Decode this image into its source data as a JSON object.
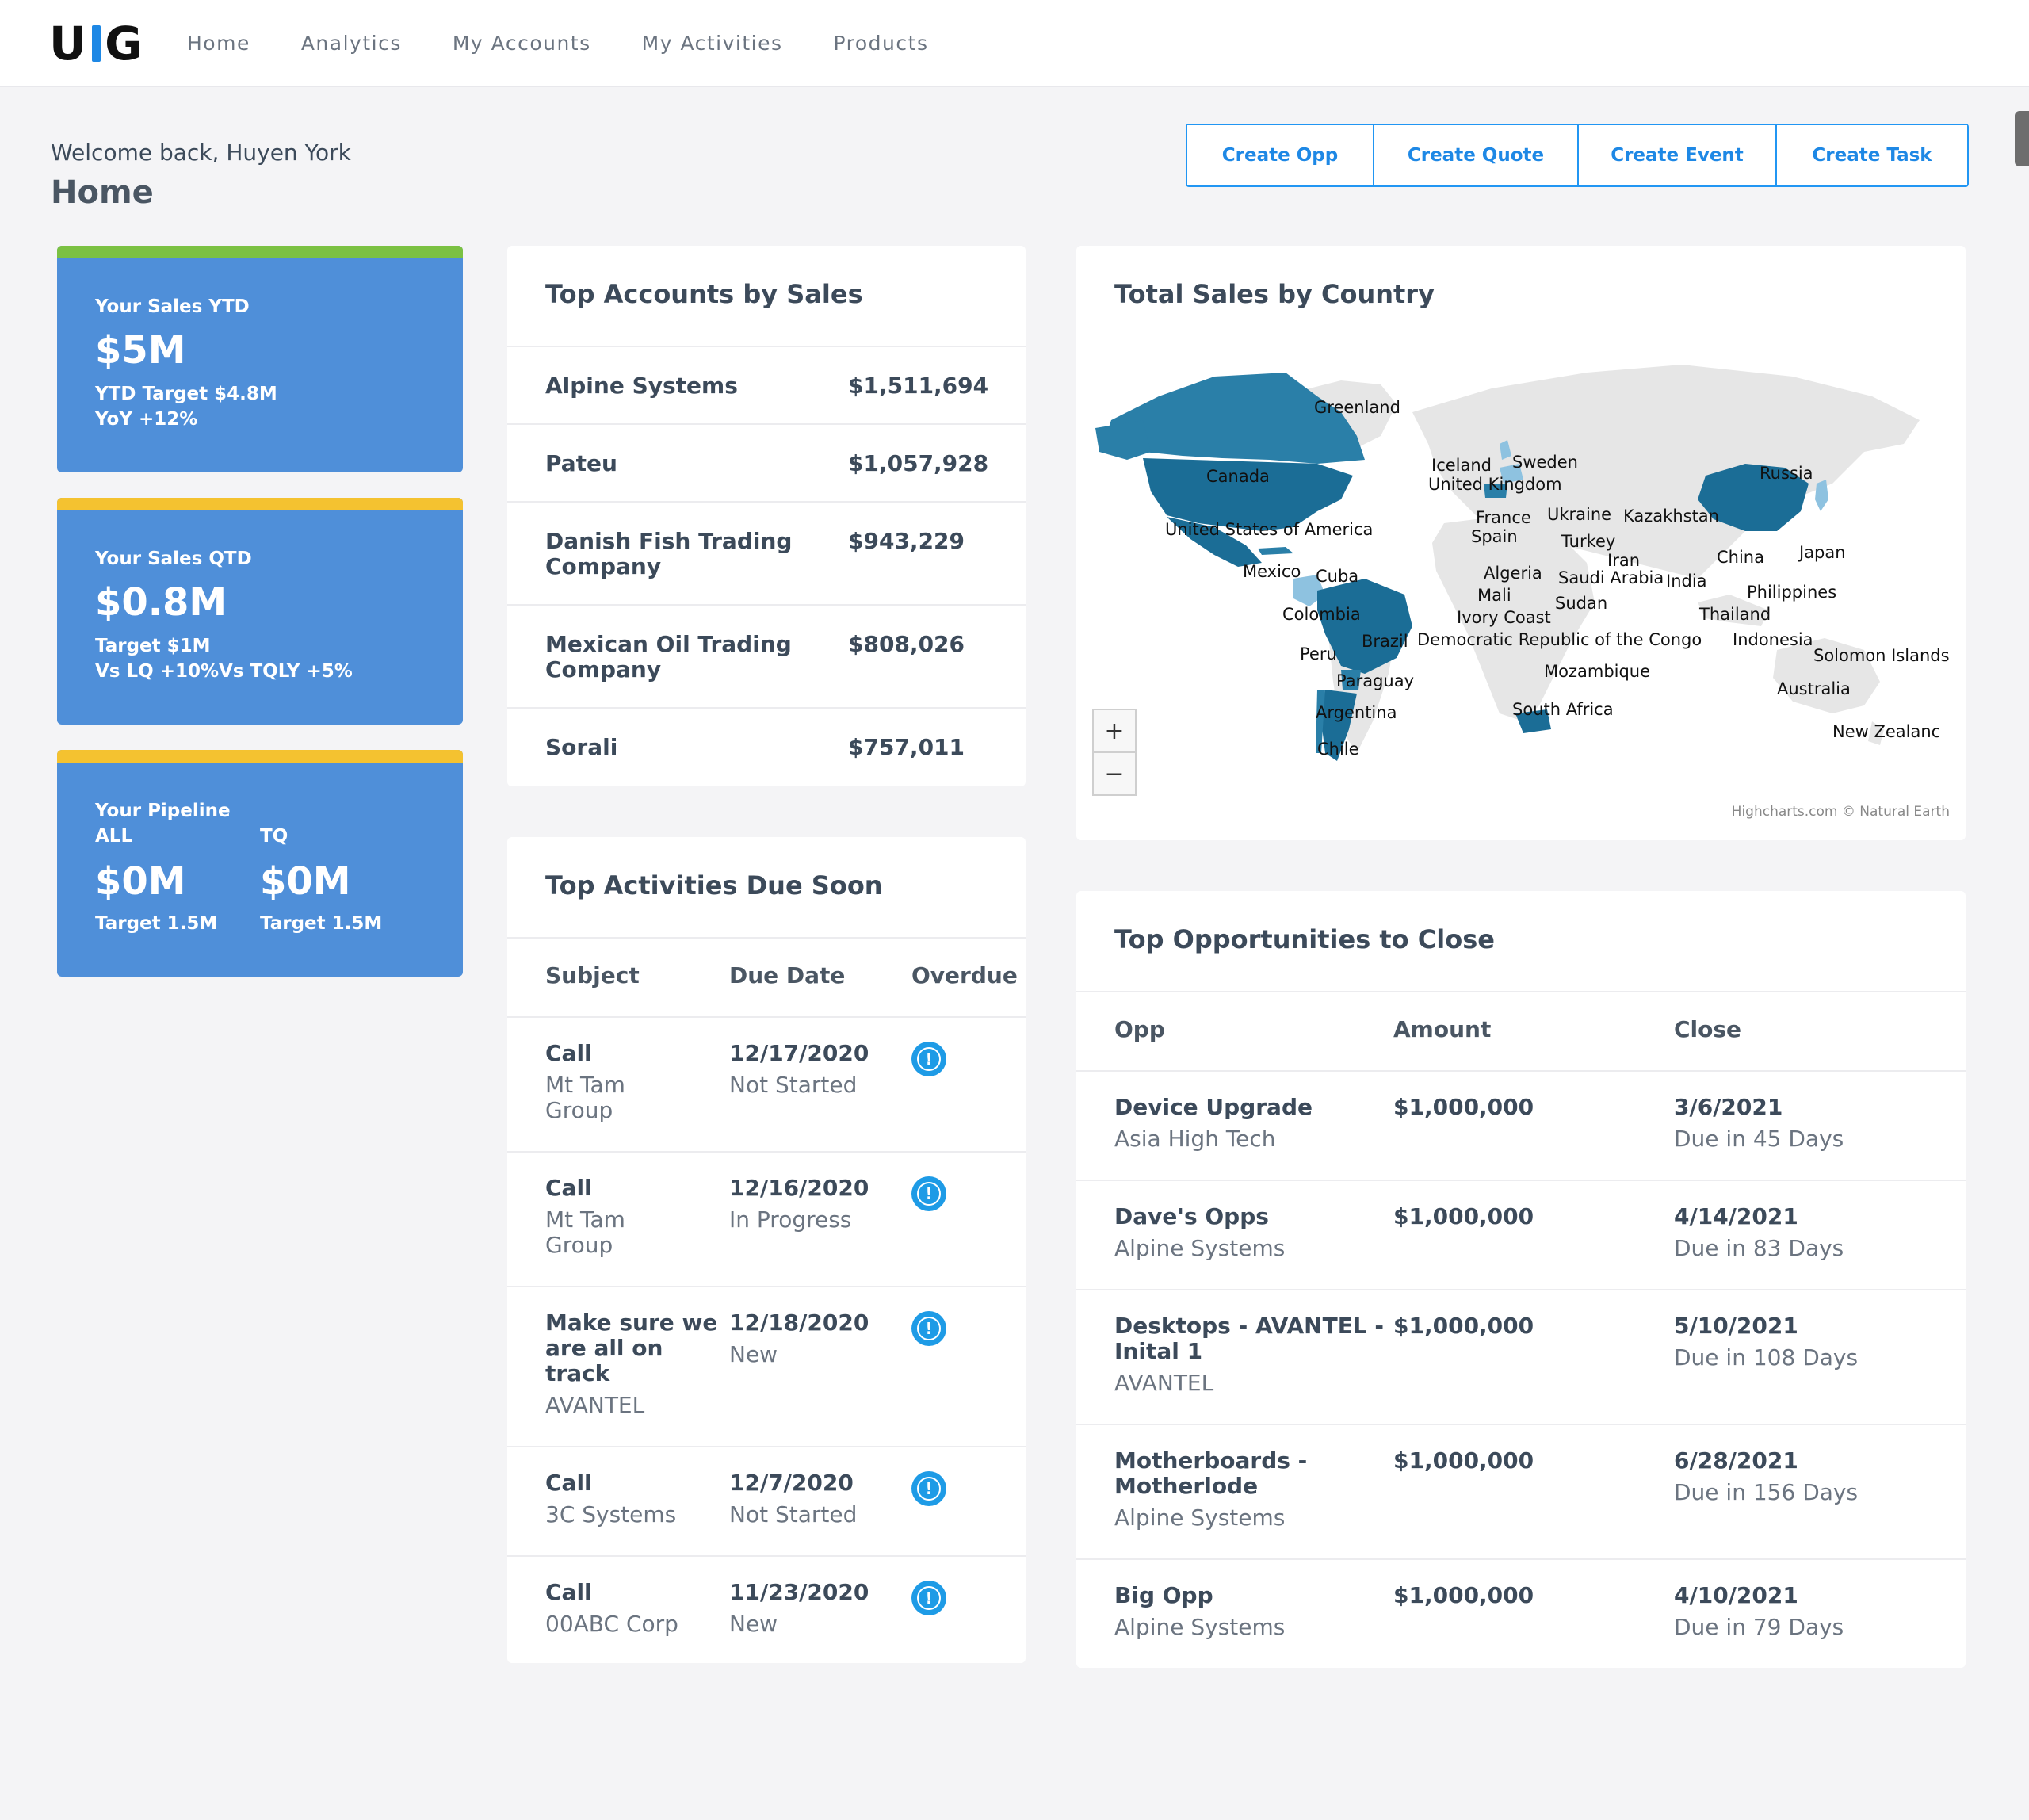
{
  "nav": {
    "logo_left": "U",
    "logo_right": "G",
    "items": [
      "Home",
      "Analytics",
      "My Accounts",
      "My Activities",
      "Products"
    ]
  },
  "header": {
    "welcome": "Welcome back, Huyen York",
    "title": "Home"
  },
  "actions": [
    "Create Opp",
    "Create Quote",
    "Create Event",
    "Create Task"
  ],
  "kpis": {
    "ytd": {
      "label": "Your Sales YTD",
      "value": "$5M",
      "line1": "YTD Target $4.8M",
      "line2": "YoY +12%",
      "stripe_color": "#7bc142"
    },
    "qtd": {
      "label": "Your Sales QTD",
      "value": "$0.8M",
      "line1": "Target $1M",
      "line2a": "Vs LQ +10%",
      "line2b": "Vs TQLY +5%",
      "stripe_color": "#f4c230"
    },
    "pipeline": {
      "label": "Your Pipeline",
      "col1_label": "ALL",
      "col2_label": "TQ",
      "col1_value": "$0M",
      "col2_value": "$0M",
      "col1_target": "Target 1.5M",
      "col2_target": "Target 1.5M",
      "stripe_color": "#f4c230"
    }
  },
  "top_accounts": {
    "title": "Top Accounts by Sales",
    "rows": [
      {
        "name": "Alpine Systems",
        "amount": "$1,511,694"
      },
      {
        "name": "Pateu",
        "amount": "$1,057,928"
      },
      {
        "name_line1": "Danish Fish Trading",
        "name_line2": "Company",
        "amount": "$943,229"
      },
      {
        "name_line1": "Mexican Oil Trading",
        "name_line2": "Company",
        "amount": "$808,026"
      },
      {
        "name": "Sorali",
        "amount": "$757,011"
      }
    ]
  },
  "activities": {
    "title": "Top Activities Due Soon",
    "headers": [
      "Subject",
      "Due Date",
      "Overdue"
    ],
    "rows": [
      {
        "subject": "Call",
        "account_line1": "Mt Tam",
        "account_line2": "Group",
        "date": "12/17/2020",
        "status": "Not Started"
      },
      {
        "subject": "Call",
        "account_line1": "Mt Tam",
        "account_line2": "Group",
        "date": "12/16/2020",
        "status": "In Progress"
      },
      {
        "subject_line1": "Make sure we",
        "subject_line2": "are all on",
        "subject_line3": "track",
        "account": "AVANTEL",
        "date": "12/18/2020",
        "status": "New"
      },
      {
        "subject": "Call",
        "account": "3C Systems",
        "date": "12/7/2020",
        "status": "Not Started"
      },
      {
        "subject": "Call",
        "account": "00ABC Corp",
        "date": "11/23/2020",
        "status": "New"
      }
    ]
  },
  "map": {
    "title": "Total Sales by Country",
    "zoom_in": "+",
    "zoom_out": "−",
    "credit": "Highcharts.com © Natural Earth",
    "labels": {
      "greenland": "Greenland",
      "canada": "Canada",
      "usa": "United States of America",
      "mexico": "Mexico",
      "cuba": "Cuba",
      "colombia": "Colombia",
      "brazil": "Brazil",
      "peru": "Peru",
      "paraguay": "Paraguay",
      "argentina": "Argentina",
      "chile": "Chile",
      "iceland": "Iceland",
      "sweden": "Sweden",
      "uk": "United Kingdom",
      "france": "France",
      "spain": "Spain",
      "ukraine": "Ukraine",
      "kazakhstan": "Kazakhstan",
      "russia": "Russia",
      "turkey": "Turkey",
      "iran": "Iran",
      "algeria": "Algeria",
      "mali": "Mali",
      "saudi": "Saudi Arabia",
      "india": "India",
      "sudan": "Sudan",
      "china": "China",
      "japan": "Japan",
      "philippines": "Philippines",
      "thailand": "Thailand",
      "ivory": "Ivory Coast",
      "drc": "Democratic Republic of the Congo",
      "indonesia": "Indonesia",
      "solomon": "Solomon Islands",
      "mozambique": "Mozambique",
      "australia": "Australia",
      "south_africa": "South Africa",
      "new_zealand": "New Zealanc"
    },
    "colors": {
      "high": "#1b6d96",
      "mid": "#2a7fa8",
      "low": "#8ec2e0",
      "none": "#e6e6e6"
    }
  },
  "opportunities": {
    "title": "Top Opportunities to Close",
    "headers": [
      "Opp",
      "Amount",
      "Close"
    ],
    "rows": [
      {
        "opp": "Device Upgrade",
        "account": "Asia High Tech",
        "amount": "$1,000,000",
        "close": "3/6/2021",
        "due": "Due in 45 Days"
      },
      {
        "opp": "Dave's Opps",
        "account": "Alpine Systems",
        "amount": "$1,000,000",
        "close": "4/14/2021",
        "due": "Due in 83 Days"
      },
      {
        "opp_line1": "Desktops - AVANTEL -",
        "opp_line2": "Inital 1",
        "account": "AVANTEL",
        "amount": "$1,000,000",
        "close": "5/10/2021",
        "due": "Due in 108 Days"
      },
      {
        "opp_line1": "Motherboards -",
        "opp_line2": "Motherlode",
        "account": "Alpine Systems",
        "amount": "$1,000,000",
        "close": "6/28/2021",
        "due": "Due in 156 Days"
      },
      {
        "opp": "Big Opp",
        "account": "Alpine Systems",
        "amount": "$1,000,000",
        "close": "4/10/2021",
        "due": "Due in 79 Days"
      }
    ]
  }
}
